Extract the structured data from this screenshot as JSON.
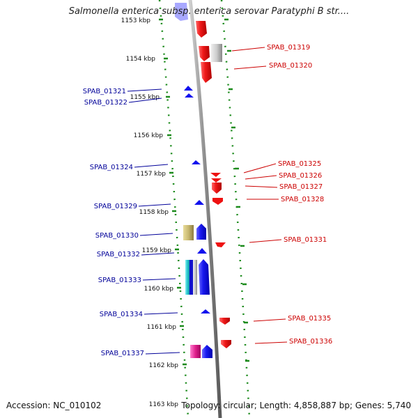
{
  "title": "Salmonella enterica subsp. enterica serovar Paratyphi B str....",
  "footer": {
    "accession": "Accession: NC_010102",
    "info": "Topology: circular; Length: 4,858,887 bp; Genes: 5,740"
  },
  "colors": {
    "backbone": "#8c8c8c",
    "tick_dots": "#1b8a1b",
    "forward_label": "#cc0000",
    "reverse_label": "#000099",
    "forward_gene": "#ee1111",
    "reverse_gene": "#1111ee"
  },
  "ruler": {
    "unit": "kbp",
    "ticks": [
      "1153 kbp",
      "1154 kbp",
      "1155 kbp",
      "1156 kbp",
      "1157 kbp",
      "1158 kbp",
      "1159 kbp",
      "1160 kbp",
      "1161 kbp",
      "1162 kbp",
      "1163 kbp"
    ]
  },
  "forward_labels": [
    "SPAB_01319",
    "SPAB_01320",
    "SPAB_01325",
    "SPAB_01326",
    "SPAB_01327",
    "SPAB_01328",
    "SPAB_01331",
    "SPAB_01335",
    "SPAB_01336"
  ],
  "reverse_labels": [
    "SPAB_01321",
    "SPAB_01322",
    "SPAB_01324",
    "SPAB_01329",
    "SPAB_01330",
    "SPAB_01332",
    "SPAB_01333",
    "SPAB_01334",
    "SPAB_01337"
  ]
}
